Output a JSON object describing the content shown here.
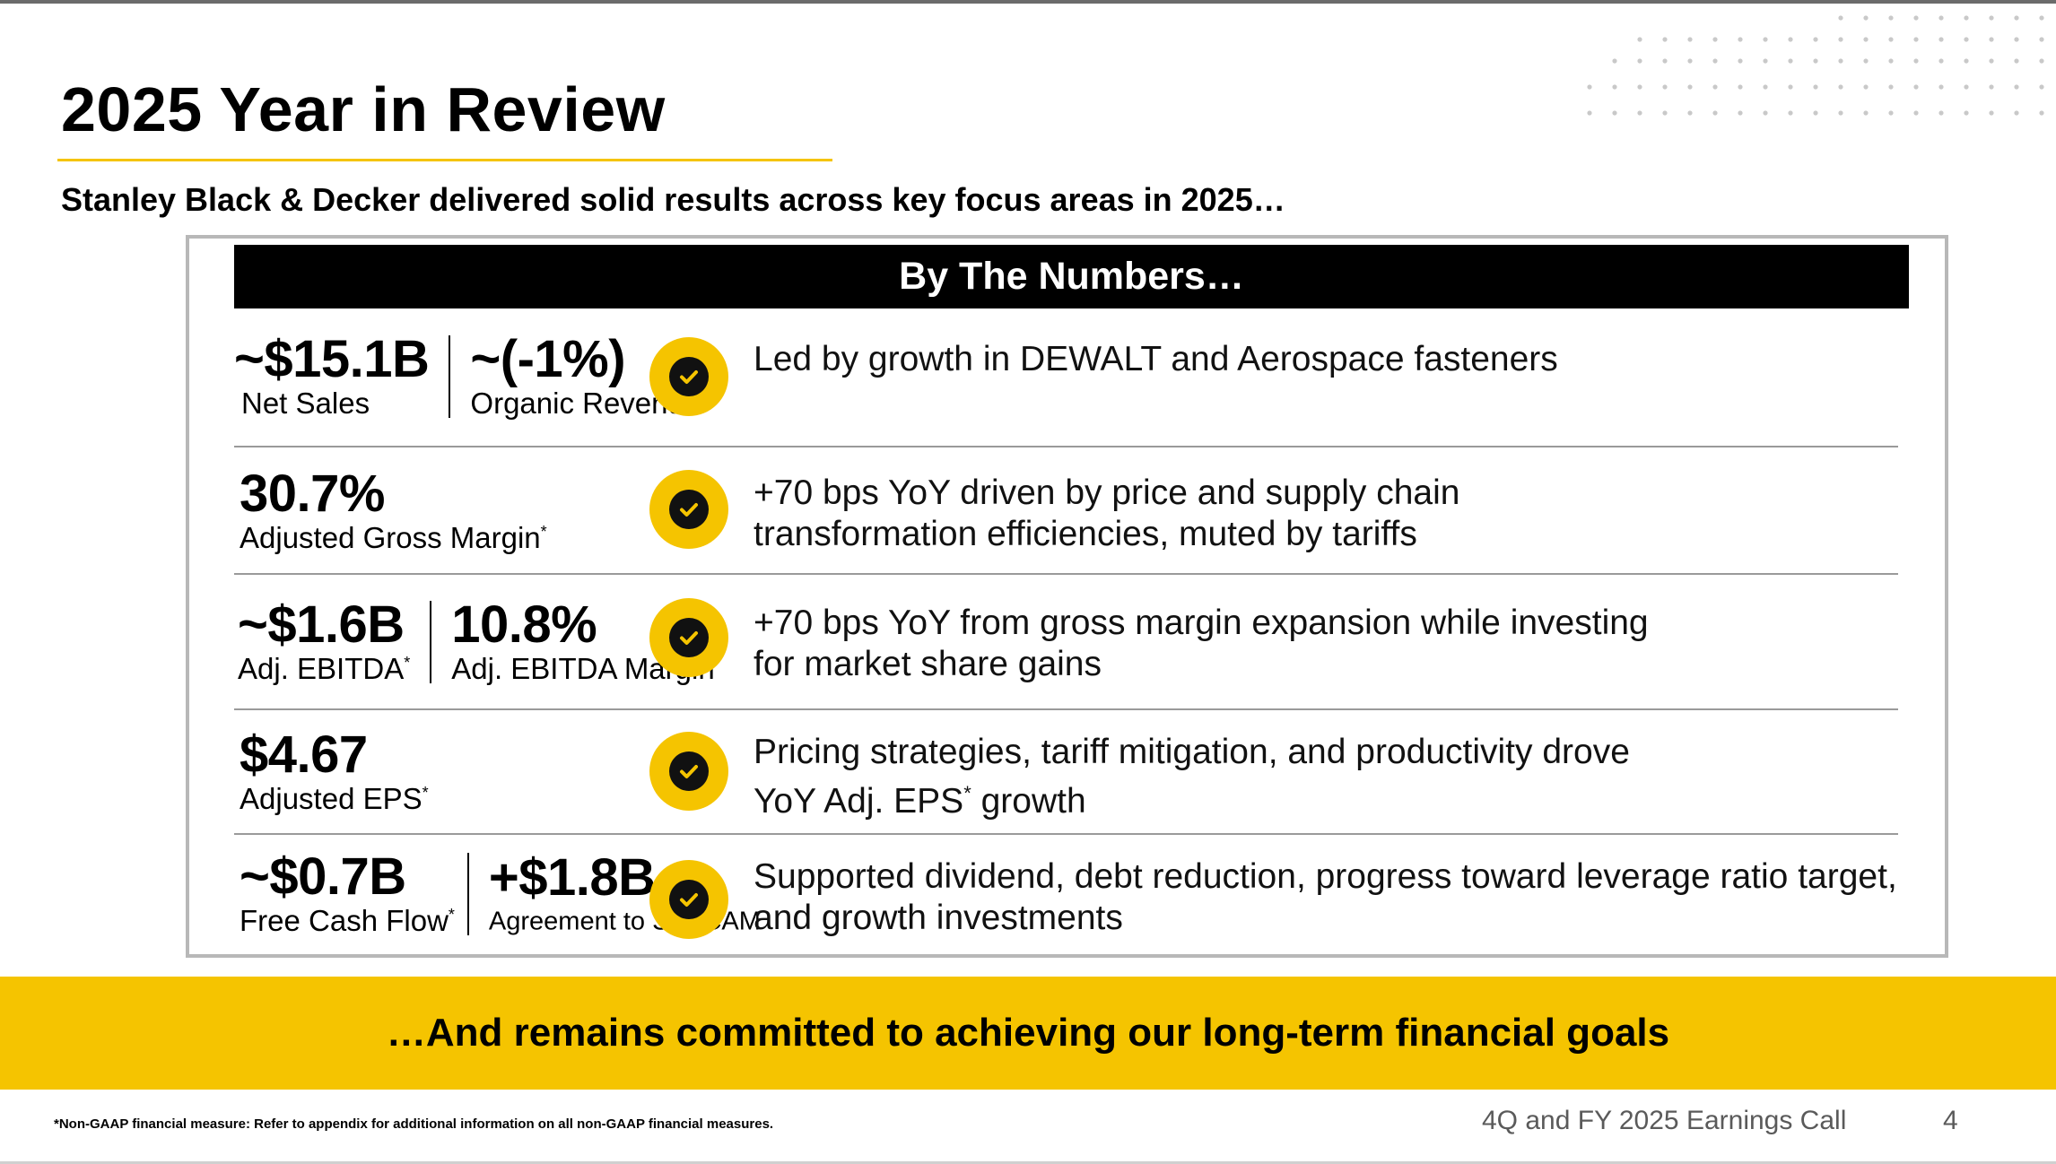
{
  "slide": {
    "title": "2025 Year in Review",
    "subtitle": "Stanley Black & Decker delivered solid results across key focus areas in 2025…",
    "panel_header": "By The Numbers…",
    "rows": [
      {
        "metrics": [
          {
            "value": "~$15.1B",
            "label": "Net Sales",
            "asterisk": ""
          },
          {
            "value": "~(-1%)",
            "label": "Organic Revenue",
            "asterisk": "*"
          }
        ],
        "description": "Led by growth in DEWALT and Aerospace fasteners"
      },
      {
        "metrics": [
          {
            "value": "30.7%",
            "label": "Adjusted Gross Margin",
            "asterisk": "*"
          }
        ],
        "description": "+70 bps YoY driven by price and supply chain transformation efficiencies, muted by tariffs"
      },
      {
        "metrics": [
          {
            "value": "~$1.6B",
            "label": "Adj. EBITDA",
            "asterisk": "*"
          },
          {
            "value": "10.8%",
            "label": "Adj. EBITDA Margin",
            "asterisk": "*"
          }
        ],
        "description": "+70 bps YoY from gross margin expansion while investing for market share gains"
      },
      {
        "metrics": [
          {
            "value": "$4.67",
            "label": "Adjusted EPS",
            "asterisk": "*"
          }
        ],
        "description_pre": "Pricing strategies, tariff mitigation, and productivity drove YoY Adj. EPS",
        "description_sup": "*",
        "description_post": " growth"
      },
      {
        "metrics": [
          {
            "value": "~$0.7B",
            "label": "Free Cash Flow",
            "asterisk": "*"
          },
          {
            "value": "+$1.8B",
            "label": "Agreement to Sell CAM",
            "asterisk": ""
          }
        ],
        "description": "Supported dividend, debt reduction, progress toward leverage ratio target, and growth investments"
      }
    ],
    "banner": "…And remains committed to achieving our long-term financial goals",
    "footnote": "*Non-GAAP financial measure: Refer to appendix for additional information on all non-GAAP financial measures.",
    "footer_title": "4Q and FY 2025 Earnings Call",
    "page_number": "4"
  },
  "icons": {
    "check": "check-circle-icon",
    "decor": "dot-grid-decoration"
  },
  "colors": {
    "accent": "#f5c400",
    "header_bg": "#000000",
    "text": "#000000",
    "footer_text": "#5a5a5a"
  }
}
